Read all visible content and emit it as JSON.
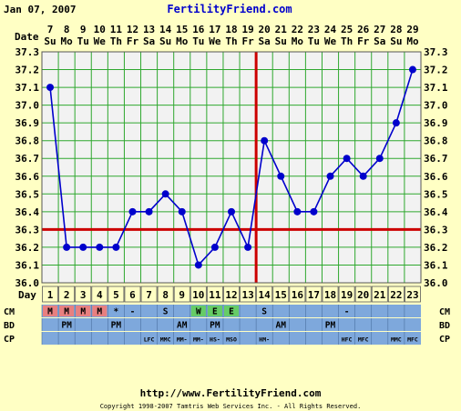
{
  "header": {
    "date": "Jan 07, 2007",
    "brand": "FertilityFriend.com"
  },
  "labels": {
    "date_row": "Date",
    "day_row": "Day",
    "cm": "CM",
    "bd": "BD",
    "cp": "CP"
  },
  "footer": {
    "url": "http://www.FertilityFriend.com",
    "copyright": "Copyright 1998-2007 Tamtris Web Services Inc. - All Rights Reserved."
  },
  "colors": {
    "background": "#ffffc4",
    "plot": "#f2f2f2",
    "grid": "#2fa82f",
    "series": "#0000cc",
    "coverline": "#cc0000",
    "ovulation": "#cc0000",
    "row_blue": "#7ea8dc",
    "cell_menses": "#e88080",
    "cell_egg": "#66cc66",
    "cell_watery": "#66cc66"
  },
  "chart_data": {
    "type": "line",
    "title": "",
    "xlabel": "",
    "ylabel": "",
    "ylim": [
      36.0,
      37.3
    ],
    "yticks": [
      "36.0",
      "36.1",
      "36.2",
      "36.3",
      "36.4",
      "36.5",
      "36.6",
      "36.7",
      "36.8",
      "36.9",
      "37.0",
      "37.1",
      "37.2",
      "37.3"
    ],
    "grid": true,
    "dates": [
      "7",
      "8",
      "9",
      "10",
      "11",
      "12",
      "13",
      "14",
      "15",
      "16",
      "17",
      "18",
      "19",
      "20",
      "21",
      "22",
      "23",
      "24",
      "25",
      "26",
      "27",
      "28",
      "29"
    ],
    "weekdays": [
      "Su",
      "Mo",
      "Tu",
      "We",
      "Th",
      "Fr",
      "Sa",
      "Su",
      "Mo",
      "Tu",
      "We",
      "Th",
      "Fr",
      "Sa",
      "Su",
      "Mo",
      "Tu",
      "We",
      "Th",
      "Fr",
      "Sa",
      "Su",
      "Mo"
    ],
    "days": [
      "1",
      "2",
      "3",
      "4",
      "5",
      "6",
      "7",
      "8",
      "9",
      "10",
      "11",
      "12",
      "13",
      "14",
      "15",
      "16",
      "17",
      "18",
      "19",
      "20",
      "21",
      "22",
      "23"
    ],
    "series": [
      {
        "values": [
          37.1,
          36.2,
          36.2,
          36.2,
          36.2,
          36.4,
          36.4,
          36.5,
          36.4,
          36.1,
          36.2,
          36.4,
          36.2,
          36.8,
          36.6,
          36.4,
          36.4,
          36.6,
          36.7,
          36.6,
          36.7,
          36.9,
          37.2
        ]
      }
    ],
    "coverline": 36.3,
    "ovulation_day": 13,
    "cm": [
      "M",
      "M",
      "M",
      "M",
      "*",
      "-",
      "",
      "S",
      "",
      "W",
      "E",
      "E",
      "",
      "S",
      "",
      "",
      "",
      "",
      "-",
      "",
      "",
      "",
      ""
    ],
    "bd": [
      "",
      "PM",
      "",
      "",
      "PM",
      "",
      "",
      "",
      "AM",
      "",
      "PM",
      "",
      "",
      "",
      "AM",
      "",
      "",
      "PM",
      "",
      "",
      "",
      "",
      ""
    ],
    "cp": [
      "",
      "",
      "",
      "",
      "",
      "",
      "LFC",
      "MMC",
      "MM-",
      "MM-",
      "HS-",
      "MSO",
      "",
      "HM-",
      "",
      "",
      "",
      "",
      "HFC",
      "MFC",
      "",
      "MMC",
      "MFC"
    ]
  }
}
